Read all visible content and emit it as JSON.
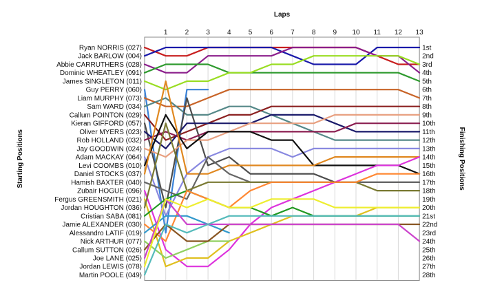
{
  "chart_data": {
    "type": "line",
    "title": "Laps",
    "ylabel_left": "Starting Positions",
    "ylabel_right": "Finishing Positions",
    "laps": [
      1,
      2,
      3,
      4,
      5,
      6,
      7,
      8,
      9,
      10,
      11,
      12,
      13
    ],
    "start_labels": [
      "Ryan NORRIS (027)",
      "Jack BARLOW (004)",
      "Abbie CARRUTHERS (028)",
      "Dominic WHEATLEY (091)",
      "James SINGLETON (011)",
      "Guy PERRY (060)",
      "Liam MURPHY (073)",
      "Sam WARD (034)",
      "Callum POINTON (029)",
      "Kieran GIFFORD (057)",
      "Oliver MYERS (023)",
      "Rob HOLLAND (032)",
      "Jay GOODWIN (024)",
      "Adam MACKAY (064)",
      "Levi COOMBS (010)",
      "Daniel STOCKS (037)",
      "Hamish BAXTER (040)",
      "Zubair HOGUE (096)",
      "Fergus GREENSMITH (021)",
      "Jordan HOUGHTON (036)",
      "Cristian SABA (081)",
      "Jamie ALEXANDER (030)",
      "Alessandro LATIF (019)",
      "Nick ARTHUR (077)",
      "Callum SUTTON (026)",
      "Joe LANE (025)",
      "Jordan LEWIS (078)",
      "Martin POOLE (049)"
    ],
    "finish_labels": [
      "1st",
      "2nd",
      "3rd",
      "4th",
      "5th",
      "6th",
      "7th",
      "8th",
      "9th",
      "10th",
      "11th",
      "12th",
      "13th",
      "14th",
      "15th",
      "16th",
      "17th",
      "18th",
      "19th",
      "20th",
      "21st",
      "22nd",
      "23rd",
      "24th",
      "25th",
      "26th",
      "27th",
      "28th"
    ],
    "series": [
      {
        "color": "#c81e1e",
        "positions": [
          1,
          2,
          2,
          1,
          1,
          1,
          1,
          1,
          1,
          1,
          1,
          2,
          3,
          3
        ]
      },
      {
        "color": "#1a1aaa",
        "positions": [
          2,
          1,
          1,
          1,
          1,
          1,
          1,
          2,
          3,
          3,
          3,
          1,
          1,
          1
        ]
      },
      {
        "color": "#8b1e8b",
        "positions": [
          3,
          4,
          4,
          2,
          2,
          2,
          2,
          1,
          1,
          1,
          1,
          2,
          2,
          4
        ]
      },
      {
        "color": "#2e9a2e",
        "positions": [
          4,
          3,
          3,
          3,
          4,
          4,
          4,
          4,
          4,
          4,
          4,
          4,
          4,
          5
        ]
      },
      {
        "color": "#99dd22",
        "positions": [
          5,
          6,
          5,
          5,
          4,
          4,
          3,
          3,
          2,
          2,
          2,
          2,
          2,
          3
        ]
      },
      {
        "color": "#3a82d8",
        "positions": [
          6,
          23,
          6,
          6
        ]
      },
      {
        "color": "#c86428",
        "positions": [
          7,
          8,
          8,
          7,
          6,
          6,
          6,
          6,
          6,
          6,
          6,
          6,
          6,
          7
        ]
      },
      {
        "color": "#558888",
        "positions": [
          8,
          7,
          9,
          9,
          8,
          8,
          9,
          10,
          11,
          12,
          12,
          12,
          12,
          12
        ]
      },
      {
        "color": "#8b2020",
        "positions": [
          9,
          12,
          11,
          10,
          9,
          9,
          8,
          8,
          8,
          8,
          8,
          8,
          8,
          8
        ]
      },
      {
        "color": "#4d4d4d",
        "positions": [
          10,
          20,
          7,
          15,
          14,
          16,
          16,
          16,
          16,
          17,
          17,
          17,
          17,
          17
        ]
      },
      {
        "color": "#1a1a6a",
        "positions": [
          11,
          13,
          10,
          10,
          10,
          10,
          9,
          9,
          9,
          10,
          11,
          11,
          11,
          11
        ]
      },
      {
        "color": "#8b1e50",
        "positions": [
          12,
          11,
          12,
          11,
          11,
          11,
          11,
          11,
          11,
          11,
          10,
          10,
          10,
          10
        ]
      },
      {
        "color": "#e8a080",
        "positions": [
          13,
          14,
          12,
          12,
          11,
          10,
          10,
          10,
          10,
          9,
          9,
          9,
          9,
          9
        ]
      },
      {
        "color": "#8888e0",
        "positions": [
          14,
          21,
          16,
          14,
          13,
          13,
          13,
          14,
          13,
          13,
          13,
          13,
          13,
          13
        ]
      },
      {
        "color": "#111111",
        "positions": [
          15,
          9,
          13,
          11,
          11,
          11,
          12,
          12,
          15,
          15,
          15,
          15,
          15,
          16
        ]
      },
      {
        "color": "#e08820",
        "positions": [
          16,
          5,
          16,
          16,
          15,
          15,
          15,
          15,
          15,
          14,
          14,
          14,
          14,
          14
        ]
      },
      {
        "color": "#666666",
        "positions": [
          17,
          18,
          19,
          14,
          16,
          17,
          17,
          17,
          17,
          17,
          17,
          17,
          17,
          17
        ]
      },
      {
        "color": "#dd33dd",
        "positions": [
          18,
          25,
          27,
          27,
          25,
          22,
          20,
          19,
          18,
          17,
          16,
          15,
          15,
          14
        ]
      },
      {
        "color": "#e0c020",
        "positions": [
          19,
          27,
          26,
          26,
          24,
          23,
          22,
          21,
          21,
          21,
          21,
          20,
          20,
          20
        ]
      },
      {
        "color": "#7a7a33",
        "positions": [
          20,
          10,
          18,
          17,
          17,
          17,
          17,
          17,
          17,
          17,
          17,
          18,
          18,
          18
        ]
      },
      {
        "color": "#229922",
        "positions": [
          21,
          19,
          18,
          19,
          20,
          20,
          21,
          20,
          21,
          21,
          21,
          21,
          21,
          21
        ]
      },
      {
        "color": "#ff8833",
        "positions": [
          22,
          24,
          18,
          19,
          20,
          18,
          17,
          17,
          17,
          17,
          17,
          16,
          16,
          16
        ]
      },
      {
        "color": "#3399cc",
        "positions": [
          23,
          21,
          21,
          22,
          23
        ]
      },
      {
        "color": "#90d060",
        "positions": [
          24,
          26,
          25,
          24,
          24
        ]
      },
      {
        "color": "#885522",
        "positions": [
          25,
          22,
          24,
          24,
          22,
          22,
          22,
          22,
          22,
          22,
          22,
          22,
          22,
          22
        ]
      },
      {
        "color": "#cc44cc",
        "positions": [
          26,
          19,
          22,
          22,
          22,
          22,
          22,
          22,
          22,
          22,
          22,
          22,
          22,
          24
        ]
      },
      {
        "color": "#eeee30",
        "positions": [
          27,
          19,
          20,
          19,
          20,
          20,
          19,
          19,
          19,
          20,
          20,
          20,
          20,
          20
        ]
      },
      {
        "color": "#55bbbb",
        "positions": [
          28,
          22,
          23,
          22,
          21,
          21,
          21,
          21,
          21,
          21,
          21,
          21,
          21,
          21
        ]
      }
    ]
  }
}
